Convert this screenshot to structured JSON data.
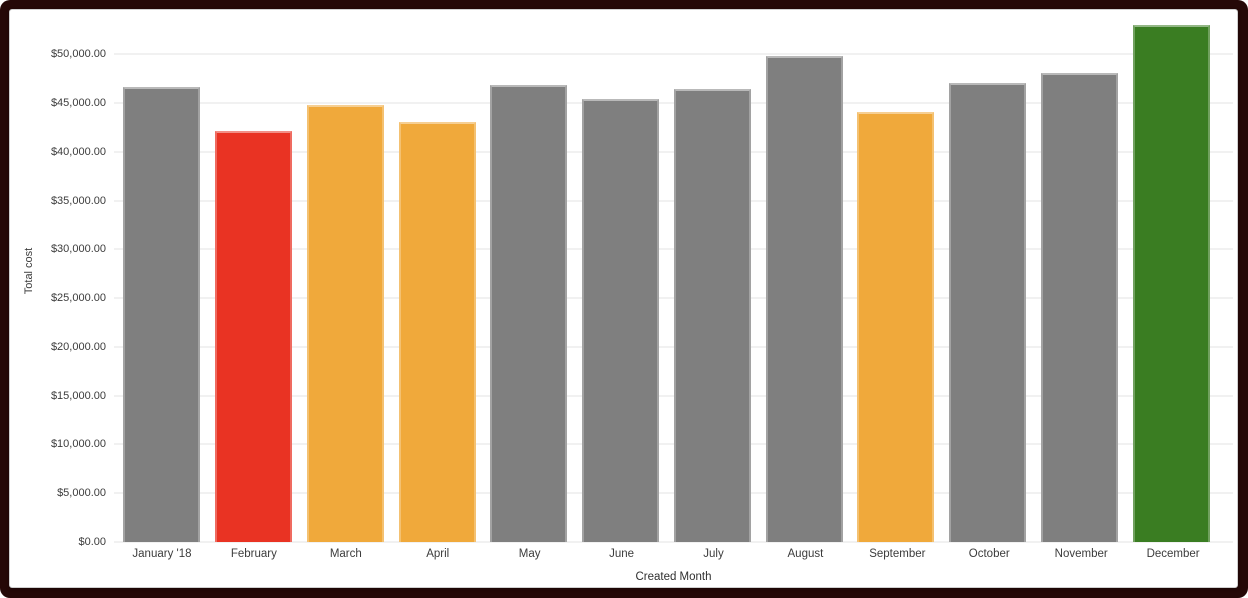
{
  "frame": {
    "border_color": "#250807",
    "card_background": "#ffffff"
  },
  "chart_data": {
    "type": "bar",
    "title": "",
    "xlabel": "Created Month",
    "ylabel": "Total cost",
    "categories": [
      "January '18",
      "February",
      "March",
      "April",
      "May",
      "June",
      "July",
      "August",
      "September",
      "October",
      "November",
      "December"
    ],
    "values": [
      46600,
      42100,
      44800,
      43100,
      46900,
      45400,
      46400,
      49800,
      44100,
      47100,
      48100,
      53000
    ],
    "bar_colors": [
      "#7f7f7f",
      "#e93323",
      "#f0a93b",
      "#f0a93b",
      "#7f7f7f",
      "#7f7f7f",
      "#7f7f7f",
      "#7f7f7f",
      "#f0a93b",
      "#7f7f7f",
      "#7f7f7f",
      "#3a7d22"
    ],
    "color_legend": {
      "default": "#7f7f7f",
      "alert": "#e93323",
      "warning": "#f0a93b",
      "good": "#3a7d22"
    },
    "y_ticks": [
      {
        "value": 0,
        "label": "$0.00"
      },
      {
        "value": 5000,
        "label": "$5,000.00"
      },
      {
        "value": 10000,
        "label": "$10,000.00"
      },
      {
        "value": 15000,
        "label": "$15,000.00"
      },
      {
        "value": 20000,
        "label": "$20,000.00"
      },
      {
        "value": 25000,
        "label": "$25,000.00"
      },
      {
        "value": 30000,
        "label": "$30,000.00"
      },
      {
        "value": 35000,
        "label": "$35,000.00"
      },
      {
        "value": 40000,
        "label": "$40,000.00"
      },
      {
        "value": 45000,
        "label": "$45,000.00"
      },
      {
        "value": 50000,
        "label": "$50,000.00"
      }
    ],
    "ylim": [
      0,
      54500
    ],
    "grid": true,
    "gridline_color": "#f1f1f1",
    "legend": "none"
  }
}
